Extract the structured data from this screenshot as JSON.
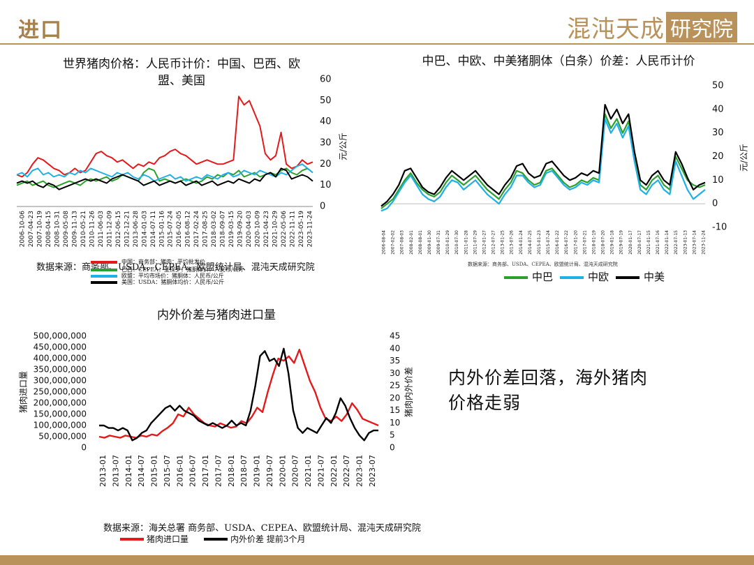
{
  "header": {
    "title": "进口",
    "logo_text_a": "混沌天成",
    "logo_text_b": "研究院"
  },
  "colors": {
    "accent": "#b8925a",
    "china": "#e31a1c",
    "brazil": "#2ca02c",
    "eu": "#1fb0e8",
    "us": "#000000"
  },
  "note": {
    "line1": "内外价差回落，海外猪肉",
    "line2": "价格走弱"
  },
  "chart_data": [
    {
      "type": "line",
      "title_line1": "世界猪肉价格：人民币计价：中国、巴西、欧",
      "title_line2": "盟、美国",
      "ylabel": "元/公斤",
      "ylim": [
        0,
        60
      ],
      "yticks": [
        "0",
        "10",
        "20",
        "30",
        "40",
        "50",
        "60"
      ],
      "x_labels": [
        "2006-10-06",
        "2007-04-23",
        "2007-10-19",
        "2008-04-15",
        "2008-10-31",
        "2009-05-08",
        "2009-11-13",
        "2010-05-21",
        "2010-11-26",
        "2011-06-03",
        "2011-12-09",
        "2012-06-15",
        "2012-12-21",
        "2013-06-28",
        "2014-01-03",
        "2014-07-11",
        "2015-01-16",
        "2015-07-24",
        "2016-02-05",
        "2016-08-12",
        "2017-02-24",
        "2017-08-25",
        "2018-03-02",
        "2018-09-07",
        "2019-03-15",
        "2019-09-20",
        "2020-04-03",
        "2020-10-09",
        "2021-04-23",
        "2021-10-29",
        "2022-05-06",
        "2022-11-11",
        "2023-05-19",
        "2023-11-24"
      ],
      "source": "数据来源：商务部、USDA、CEPEA、欧盟统计局、混沌天成研究院",
      "legend_lines": [
        {
          "name": "中国：商务部：猪肉：平均批发价",
          "color": "#e31a1c"
        },
        {
          "name": "巴西：CEPEA：圣保罗：猪胴体价：人民币/公斤",
          "color": "#2ca02c"
        },
        {
          "name": "欧盟：平均市场价：猪胴体：人民币/公斤",
          "color": "#1fb0e8"
        },
        {
          "name": "美国：USDA：猪胴体均价：人民币/公斤",
          "color": "#000000"
        }
      ],
      "series": [
        {
          "key": "china",
          "color": "#e31a1c",
          "values": [
            15,
            14,
            16,
            20,
            23,
            22,
            20,
            18,
            17,
            15,
            16,
            18,
            16,
            17,
            21,
            25,
            26,
            24,
            23,
            21,
            22,
            20,
            18,
            20,
            19,
            21,
            20,
            23,
            24,
            26,
            27,
            25,
            24,
            22,
            20,
            21,
            22,
            21,
            20,
            20,
            21,
            22,
            52,
            48,
            50,
            44,
            38,
            25,
            22,
            24,
            35,
            20,
            18,
            19,
            22,
            20,
            21
          ]
        },
        {
          "key": "brazil",
          "color": "#2ca02c",
          "values": [
            10,
            11,
            12,
            10,
            11,
            12,
            10,
            9,
            10,
            11,
            12,
            11,
            10,
            12,
            13,
            12,
            13,
            14,
            12,
            13,
            15,
            14,
            13,
            12,
            16,
            18,
            17,
            12,
            13,
            12,
            11,
            12,
            13,
            12,
            11,
            12,
            14,
            13,
            15,
            14,
            16,
            15,
            17,
            14,
            15,
            16,
            14,
            15,
            16,
            15,
            17,
            18,
            16,
            15,
            17,
            18,
            16
          ]
        },
        {
          "key": "eu",
          "color": "#1fb0e8",
          "values": [
            15,
            16,
            14,
            17,
            18,
            15,
            16,
            14,
            15,
            14,
            16,
            15,
            17,
            16,
            18,
            17,
            16,
            15,
            14,
            16,
            15,
            16,
            14,
            13,
            15,
            14,
            12,
            13,
            14,
            15,
            13,
            14,
            12,
            13,
            14,
            13,
            15,
            14,
            13,
            15,
            16,
            14,
            15,
            17,
            16,
            15,
            17,
            16,
            15,
            14,
            16,
            15,
            17,
            19,
            20,
            18,
            16
          ]
        },
        {
          "key": "us",
          "color": "#000000",
          "values": [
            11,
            12,
            11,
            12,
            10,
            9,
            11,
            10,
            8,
            9,
            10,
            11,
            12,
            13,
            12,
            13,
            12,
            11,
            13,
            14,
            15,
            14,
            13,
            12,
            10,
            11,
            12,
            10,
            11,
            12,
            11,
            12,
            10,
            11,
            12,
            10,
            11,
            12,
            10,
            11,
            12,
            11,
            13,
            12,
            11,
            13,
            12,
            15,
            16,
            14,
            18,
            17,
            13,
            14,
            15,
            14,
            12
          ]
        }
      ]
    },
    {
      "type": "line",
      "title": "中巴、中欧、中美猪胴体（白条）价差：人民币计价",
      "ylabel": "元/公斤",
      "ylim": [
        -10,
        50
      ],
      "yticks": [
        "-10",
        "0",
        "10",
        "20",
        "30",
        "40",
        "50"
      ],
      "x_labels": [
        "2006-08-04",
        "2007-02-02",
        "2007-08-03",
        "2008-02-01",
        "2008-08-01",
        "2009-01-30",
        "2009-07-31",
        "2010-01-29",
        "2010-07-30",
        "2011-01-28",
        "2011-07-29",
        "2012-01-27",
        "2012-07-27",
        "2013-01-25",
        "2013-07-26",
        "2014-01-24",
        "2014-07-25",
        "2015-01-23",
        "2015-07-24",
        "2016-01-22",
        "2016-07-22",
        "2017-01-20",
        "2017-07-21",
        "2018-01-19",
        "2018-07-20",
        "2019-01-18",
        "2019-07-19",
        "2020-01-17",
        "2020-07-17",
        "2021-01-15",
        "2021-07-16",
        "2022-01-14",
        "2022-07-15",
        "2023-01-13",
        "2023-07-14",
        "2023-11-24"
      ],
      "source": "数据来源：商务部、USDA、CEPEA、欧盟统计局、混沌天成研究院",
      "legend": [
        "中巴",
        "中欧",
        "中美"
      ],
      "series": [
        {
          "name": "中巴",
          "color": "#2ca02c",
          "values": [
            -2,
            0,
            2,
            6,
            10,
            13,
            9,
            6,
            4,
            3,
            5,
            9,
            12,
            10,
            8,
            10,
            12,
            9,
            6,
            4,
            2,
            6,
            9,
            14,
            13,
            10,
            8,
            9,
            14,
            15,
            12,
            9,
            7,
            8,
            10,
            9,
            11,
            10,
            38,
            32,
            36,
            30,
            35,
            20,
            8,
            6,
            10,
            12,
            8,
            6,
            20,
            15,
            10,
            8,
            7,
            8
          ]
        },
        {
          "name": "中欧",
          "color": "#1fb0e8",
          "values": [
            -3,
            -2,
            1,
            5,
            9,
            12,
            8,
            4,
            2,
            1,
            3,
            7,
            10,
            9,
            6,
            8,
            10,
            7,
            4,
            2,
            0,
            4,
            7,
            12,
            12,
            9,
            7,
            8,
            13,
            14,
            11,
            8,
            6,
            7,
            9,
            8,
            10,
            9,
            36,
            30,
            34,
            28,
            33,
            18,
            6,
            4,
            8,
            10,
            6,
            4,
            18,
            12,
            6,
            2,
            4,
            6
          ]
        },
        {
          "name": "中美",
          "color": "#000000",
          "values": [
            -1,
            1,
            4,
            8,
            14,
            15,
            11,
            7,
            5,
            4,
            7,
            11,
            14,
            12,
            10,
            12,
            14,
            11,
            8,
            6,
            4,
            8,
            11,
            16,
            17,
            13,
            11,
            12,
            17,
            18,
            15,
            12,
            10,
            11,
            13,
            12,
            14,
            13,
            42,
            36,
            40,
            34,
            38,
            22,
            10,
            8,
            12,
            14,
            10,
            8,
            22,
            17,
            11,
            6,
            8,
            9
          ]
        }
      ]
    },
    {
      "type": "line",
      "title": "内外价差与猪肉进口量",
      "ylabel_left": "猪肉进口量",
      "ylabel_right": "猪肉内外价差",
      "y_left_lim": [
        0,
        500000000
      ],
      "y_left_ticks": [
        "0",
        "50,000,000",
        "100,000,000",
        "150,000,000",
        "200,000,000",
        "250,000,000",
        "300,000,000",
        "350,000,000",
        "400,000,000",
        "450,000,000",
        "500,000,000"
      ],
      "y_right_lim": [
        0,
        45
      ],
      "y_right_ticks": [
        "0",
        "5",
        "10",
        "15",
        "20",
        "25",
        "30",
        "35",
        "40",
        "45"
      ],
      "x_labels": [
        "2013-01",
        "2013-07",
        "2014-01",
        "2014-07",
        "2015-01",
        "2015-07",
        "2016-01",
        "2016-07",
        "2017-01",
        "2017-07",
        "2018-01",
        "2018-07",
        "2019-01",
        "2019-07",
        "2020-01",
        "2020-07",
        "2021-01",
        "2021-07",
        "2022-01",
        "2022-07",
        "2023-01",
        "2023-07"
      ],
      "source": "数据来源：海关总署 商务部、USDA、CEPEA、欧盟统计局、混沌天成研究院",
      "legend": [
        "猪肉进口量",
        "内外价差 提前3个月"
      ],
      "series": [
        {
          "name": "猪肉进口量",
          "color": "#e31a1c",
          "axis": "left",
          "values": [
            50000000,
            45000000,
            55000000,
            50000000,
            45000000,
            55000000,
            50000000,
            45000000,
            55000000,
            50000000,
            60000000,
            55000000,
            75000000,
            90000000,
            110000000,
            150000000,
            140000000,
            180000000,
            150000000,
            130000000,
            110000000,
            100000000,
            95000000,
            110000000,
            100000000,
            90000000,
            95000000,
            120000000,
            110000000,
            140000000,
            180000000,
            160000000,
            250000000,
            330000000,
            400000000,
            390000000,
            410000000,
            380000000,
            440000000,
            370000000,
            300000000,
            250000000,
            180000000,
            130000000,
            120000000,
            140000000,
            120000000,
            150000000,
            200000000,
            170000000,
            130000000,
            120000000,
            110000000,
            100000000
          ]
        },
        {
          "name": "内外价差 提前3个月",
          "color": "#000000",
          "axis": "right",
          "values": [
            9,
            9,
            8,
            8,
            7,
            8,
            7,
            3,
            4,
            6,
            7,
            10,
            12,
            14,
            16,
            17,
            15,
            17,
            15,
            14,
            13,
            11,
            10,
            9,
            10,
            9,
            8,
            9,
            11,
            9,
            10,
            9,
            15,
            25,
            37,
            39,
            35,
            36,
            33,
            40,
            30,
            15,
            8,
            6,
            8,
            7,
            6,
            9,
            12,
            10,
            14,
            20,
            17,
            12,
            8,
            5,
            3,
            6,
            7,
            7
          ]
        }
      ]
    }
  ]
}
